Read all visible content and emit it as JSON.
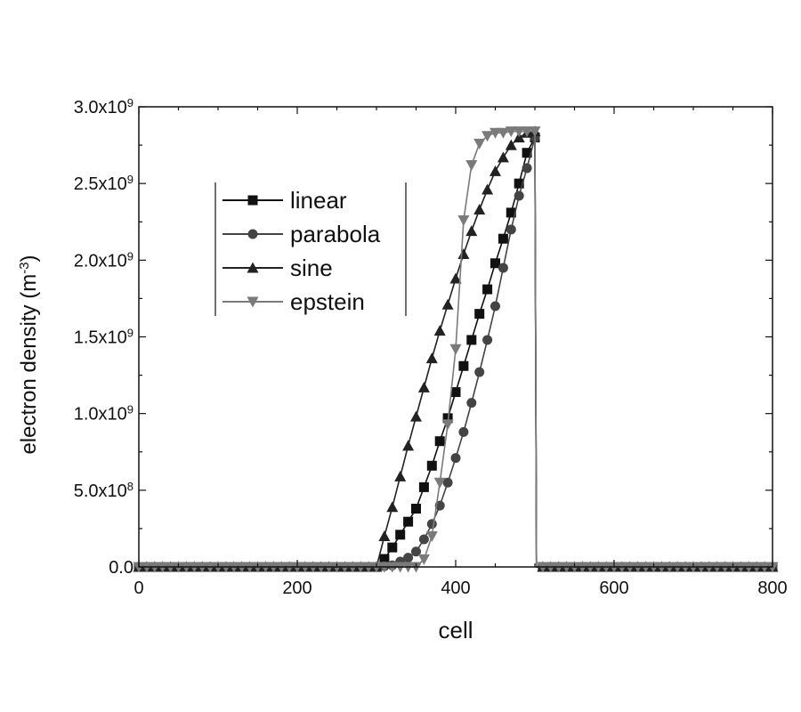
{
  "chart_data": {
    "type": "line",
    "xlabel": "cell",
    "ylabel": "electron density (m",
    "ylabel_sup": "-3",
    "ylabel_close": ")",
    "xlim": [
      0,
      800
    ],
    "ylim": [
      0,
      3000000000.0
    ],
    "x_ticks": [
      {
        "value": 0,
        "label": "0"
      },
      {
        "value": 200,
        "label": "200"
      },
      {
        "value": 400,
        "label": "400"
      },
      {
        "value": 600,
        "label": "600"
      },
      {
        "value": 800,
        "label": "800"
      }
    ],
    "y_ticks": [
      {
        "value": 0,
        "label": "0.0",
        "sup": ""
      },
      {
        "value": 500000000.0,
        "label": "5.0x10",
        "sup": "8"
      },
      {
        "value": 1000000000.0,
        "label": "1.0x10",
        "sup": "9"
      },
      {
        "value": 1500000000.0,
        "label": "1.5x10",
        "sup": "9"
      },
      {
        "value": 2000000000.0,
        "label": "2.0x10",
        "sup": "9"
      },
      {
        "value": 2500000000.0,
        "label": "2.5x10",
        "sup": "9"
      },
      {
        "value": 3000000000.0,
        "label": "3.0x10",
        "sup": "9"
      }
    ],
    "legend_position": "upper-left",
    "grid": false,
    "series": [
      {
        "name": "linear",
        "marker": "square",
        "color": "#111111",
        "x": [
          0,
          300,
          310,
          320,
          330,
          340,
          350,
          360,
          370,
          380,
          390,
          400,
          410,
          420,
          430,
          440,
          450,
          460,
          470,
          480,
          490,
          500,
          502,
          800
        ],
        "y": [
          0.0,
          0.0,
          52000000.0,
          127000000.0,
          210000000.0,
          295000000.0,
          380000000.0,
          520000000.0,
          660000000.0,
          820000000.0,
          970000000.0,
          1140000000.0,
          1310000000.0,
          1480000000.0,
          1650000000.0,
          1810000000.0,
          1980000000.0,
          2140000000.0,
          2310000000.0,
          2500000000.0,
          2700000000.0,
          2800000000.0,
          0.0,
          0.0
        ]
      },
      {
        "name": "parabola",
        "marker": "circle",
        "color": "#444444",
        "x": [
          0,
          300,
          320,
          340,
          350,
          360,
          370,
          380,
          390,
          400,
          410,
          420,
          430,
          440,
          450,
          460,
          470,
          480,
          490,
          500,
          502,
          800
        ],
        "y": [
          0.0,
          0.0,
          10000000.0,
          60000000.0,
          100000000.0,
          180000000.0,
          280000000.0,
          400000000.0,
          550000000.0,
          710000000.0,
          880000000.0,
          1070000000.0,
          1270000000.0,
          1480000000.0,
          1700000000.0,
          1950000000.0,
          2200000000.0,
          2420000000.0,
          2600000000.0,
          2800000000.0,
          0.0,
          0.0
        ]
      },
      {
        "name": "sine",
        "marker": "triangle-up",
        "color": "#222222",
        "x": [
          0,
          300,
          310,
          320,
          330,
          340,
          350,
          360,
          370,
          380,
          390,
          400,
          410,
          420,
          430,
          440,
          450,
          460,
          470,
          480,
          490,
          500,
          502,
          800
        ],
        "y": [
          0.0,
          0.0,
          200000000.0,
          390000000.0,
          590000000.0,
          790000000.0,
          980000000.0,
          1170000000.0,
          1360000000.0,
          1540000000.0,
          1710000000.0,
          1880000000.0,
          2040000000.0,
          2190000000.0,
          2330000000.0,
          2460000000.0,
          2580000000.0,
          2670000000.0,
          2750000000.0,
          2800000000.0,
          2830000000.0,
          2840000000.0,
          0.0,
          0.0
        ]
      },
      {
        "name": "epstein",
        "marker": "triangle-down",
        "color": "#7a7a7a",
        "x": [
          0,
          350,
          360,
          370,
          380,
          390,
          400,
          410,
          420,
          430,
          440,
          450,
          460,
          470,
          480,
          490,
          500,
          502,
          800
        ],
        "y": [
          0.0,
          0.0,
          50000000.0,
          200000000.0,
          550000000.0,
          930000000.0,
          1420000000.0,
          2260000000.0,
          2620000000.0,
          2760000000.0,
          2810000000.0,
          2830000000.0,
          2830000000.0,
          2840000000.0,
          2840000000.0,
          2840000000.0,
          2840000000.0,
          0.0,
          0.0
        ]
      }
    ]
  }
}
